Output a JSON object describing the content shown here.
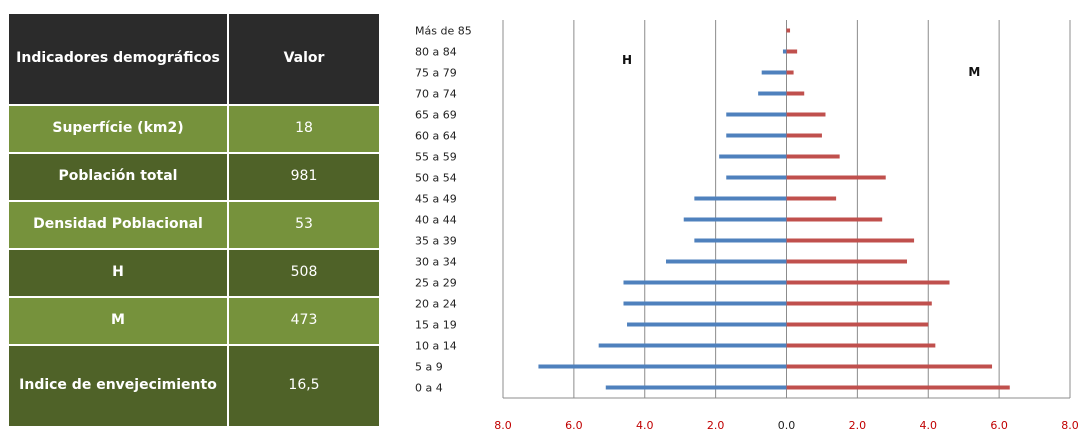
{
  "table": {
    "headers": [
      "Indicadores demográficos",
      "Valor"
    ],
    "rows": [
      {
        "label": "Superfície (km2)",
        "value": "18"
      },
      {
        "label": "Población total",
        "value": "981"
      },
      {
        "label": "Densidad Poblacional",
        "value": "53"
      },
      {
        "label": "H",
        "value": "508"
      },
      {
        "label": "M",
        "value": "473"
      },
      {
        "label": "Indice de envejecimiento",
        "value": "16,5"
      }
    ]
  },
  "colors": {
    "header_bg": "#2b2b2b",
    "row_light": "#76923c",
    "row_dark": "#4f6228",
    "series_h": "#4f81bd",
    "series_m": "#c0504d",
    "tick_label": "#c00000"
  },
  "chart_data": {
    "type": "bar",
    "orientation": "horizontal-pyramid",
    "categories": [
      "0 a 4",
      "5 a 9",
      "10 a 14",
      "15 a 19",
      "20 a 24",
      "25 a 29",
      "30 a 34",
      "35 a 39",
      "40 a 44",
      "45 a 49",
      "50 a 54",
      "55 a 59",
      "60 a 64",
      "65 a 69",
      "70 a 74",
      "75 a 79",
      "80 a 84",
      "Más de 85"
    ],
    "series": [
      {
        "name": "H",
        "side": "left",
        "values": [
          5.1,
          7.0,
          5.3,
          4.5,
          4.6,
          4.6,
          3.4,
          2.6,
          2.9,
          2.6,
          1.7,
          1.9,
          1.7,
          1.7,
          0.8,
          0.7,
          0.1,
          0.0
        ]
      },
      {
        "name": "M",
        "side": "right",
        "values": [
          6.3,
          5.8,
          4.2,
          4.0,
          4.1,
          4.6,
          3.4,
          3.6,
          2.7,
          1.4,
          2.8,
          1.5,
          1.0,
          1.1,
          0.5,
          0.2,
          0.3,
          0.1
        ]
      }
    ],
    "x_ticks": [
      "8.0",
      "6.0",
      "4.0",
      "2.0",
      "0.0",
      "2.0",
      "4.0",
      "6.0",
      "8.0"
    ],
    "xlim": [
      -8,
      8
    ],
    "grid": true,
    "series_labels_placement": "upper-inside"
  }
}
